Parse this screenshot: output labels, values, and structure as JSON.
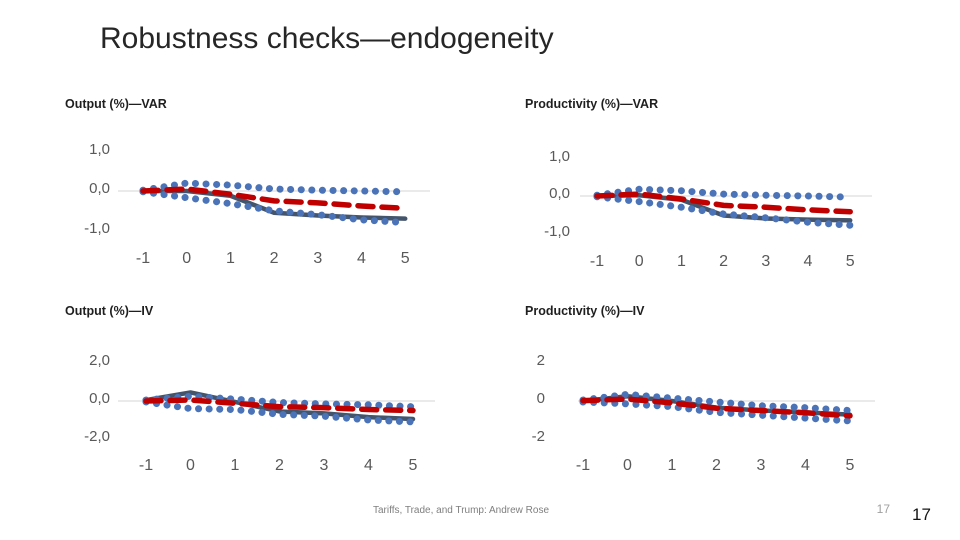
{
  "slide": {
    "title": "Robustness checks—endogeneity",
    "footer": {
      "caption": "Tariffs, Trade, and Trump: Andrew Rose",
      "page_number_small": "17",
      "page_number_large": "17"
    }
  },
  "colors": {
    "estimate_line": "#44546a",
    "alternative_line": "#c00000",
    "band_line": "#4a73b8",
    "gridline": "#d6d6d6",
    "tick_text": "#595959"
  },
  "chart_data": [
    {
      "type": "line",
      "title": "Output (%)—VAR",
      "x": [
        -1,
        0,
        1,
        2,
        3,
        4,
        5
      ],
      "xticks": [
        "-1",
        "0",
        "1",
        "2",
        "3",
        "4",
        "5"
      ],
      "yticks": {
        "labels": [
          "1,0",
          "0,0",
          "-1,0"
        ],
        "values": [
          1,
          0,
          -1
        ]
      },
      "ylim": [
        -1,
        1
      ],
      "grid": false,
      "zero_line": true,
      "legend": "none",
      "series": [
        {
          "name": "estimate",
          "style": "solid-dark",
          "values": [
            0,
            0,
            -0.12,
            -0.55,
            -0.62,
            -0.67,
            -0.7
          ]
        },
        {
          "name": "alternative-estimate",
          "style": "dashed-red",
          "values": [
            0,
            0.05,
            -0.08,
            -0.25,
            -0.3,
            -0.38,
            -0.44
          ]
        },
        {
          "name": "upper-confidence-band",
          "style": "dotted-blue",
          "values": [
            0.02,
            0.2,
            0.15,
            0.05,
            0.02,
            0,
            -0.02
          ]
        },
        {
          "name": "lower-confidence-band",
          "style": "dotted-blue",
          "values": [
            -0.02,
            -0.17,
            -0.32,
            -0.5,
            -0.6,
            -0.73,
            -0.8
          ]
        }
      ]
    },
    {
      "type": "line",
      "title": "Productivity (%)—VAR",
      "x": [
        -1,
        0,
        1,
        2,
        3,
        4,
        5
      ],
      "xticks": [
        "-1",
        "0",
        "1",
        "2",
        "3",
        "4",
        "5"
      ],
      "yticks": {
        "labels": [
          "1,0",
          "0,0",
          "-1,0"
        ],
        "values": [
          1,
          0,
          -1
        ]
      },
      "ylim": [
        -1,
        1
      ],
      "grid": false,
      "zero_line": true,
      "legend": "none",
      "series": [
        {
          "name": "estimate",
          "style": "solid-dark",
          "values": [
            0,
            0.02,
            -0.1,
            -0.52,
            -0.6,
            -0.63,
            -0.65
          ]
        },
        {
          "name": "alternative-estimate",
          "style": "dashed-red",
          "values": [
            0,
            0.05,
            -0.08,
            -0.25,
            -0.3,
            -0.37,
            -0.42
          ]
        },
        {
          "name": "upper-confidence-band",
          "style": "dotted-blue",
          "values": [
            0.02,
            0.18,
            0.14,
            0.05,
            0.02,
            0,
            -0.03
          ]
        },
        {
          "name": "lower-confidence-band",
          "style": "dotted-blue",
          "values": [
            -0.02,
            -0.15,
            -0.3,
            -0.48,
            -0.58,
            -0.7,
            -0.78
          ]
        }
      ]
    },
    {
      "type": "line",
      "title": "Output (%)—IV",
      "x": [
        -1,
        0,
        1,
        2,
        3,
        4,
        5
      ],
      "xticks": [
        "-1",
        "0",
        "1",
        "2",
        "3",
        "4",
        "5"
      ],
      "yticks": {
        "labels": [
          "2,0",
          "0,0",
          "-2,0"
        ],
        "values": [
          2,
          0,
          -2
        ]
      },
      "ylim": [
        -2,
        2
      ],
      "grid": false,
      "zero_line": true,
      "legend": "none",
      "series": [
        {
          "name": "estimate",
          "style": "solid-dark",
          "values": [
            0.05,
            0.45,
            -0.05,
            -0.55,
            -0.65,
            -0.85,
            -0.95
          ]
        },
        {
          "name": "alternative-estimate",
          "style": "dashed-red",
          "values": [
            0,
            0.05,
            -0.12,
            -0.3,
            -0.35,
            -0.45,
            -0.5
          ]
        },
        {
          "name": "upper-confidence-band",
          "style": "dotted-blue",
          "values": [
            0.05,
            0.25,
            0.1,
            -0.08,
            -0.15,
            -0.2,
            -0.3
          ]
        },
        {
          "name": "lower-confidence-band",
          "style": "dotted-blue",
          "values": [
            -0.05,
            -0.4,
            -0.45,
            -0.7,
            -0.8,
            -1.0,
            -1.1
          ]
        }
      ]
    },
    {
      "type": "line",
      "title": "Productivity (%)—IV",
      "x": [
        -1,
        0,
        1,
        2,
        3,
        4,
        5
      ],
      "xticks": [
        "-1",
        "0",
        "1",
        "2",
        "3",
        "4",
        "5"
      ],
      "yticks": {
        "labels": [
          "2",
          "0",
          "-2"
        ],
        "values": [
          2,
          0,
          -2
        ]
      },
      "ylim": [
        -2,
        2
      ],
      "grid": false,
      "zero_line": true,
      "legend": "none",
      "series": [
        {
          "name": "estimate",
          "style": "solid-dark",
          "values": [
            0,
            0.25,
            0,
            -0.35,
            -0.5,
            -0.6,
            -0.72
          ]
        },
        {
          "name": "alternative-estimate",
          "style": "dashed-red",
          "values": [
            0.02,
            0.1,
            -0.1,
            -0.38,
            -0.5,
            -0.62,
            -0.78
          ]
        },
        {
          "name": "upper-confidence-band",
          "style": "dotted-blue",
          "values": [
            0.05,
            0.35,
            0.15,
            -0.05,
            -0.25,
            -0.35,
            -0.5
          ]
        },
        {
          "name": "lower-confidence-band",
          "style": "dotted-blue",
          "values": [
            -0.05,
            -0.15,
            -0.3,
            -0.6,
            -0.75,
            -0.9,
            -1.05
          ]
        }
      ]
    }
  ]
}
